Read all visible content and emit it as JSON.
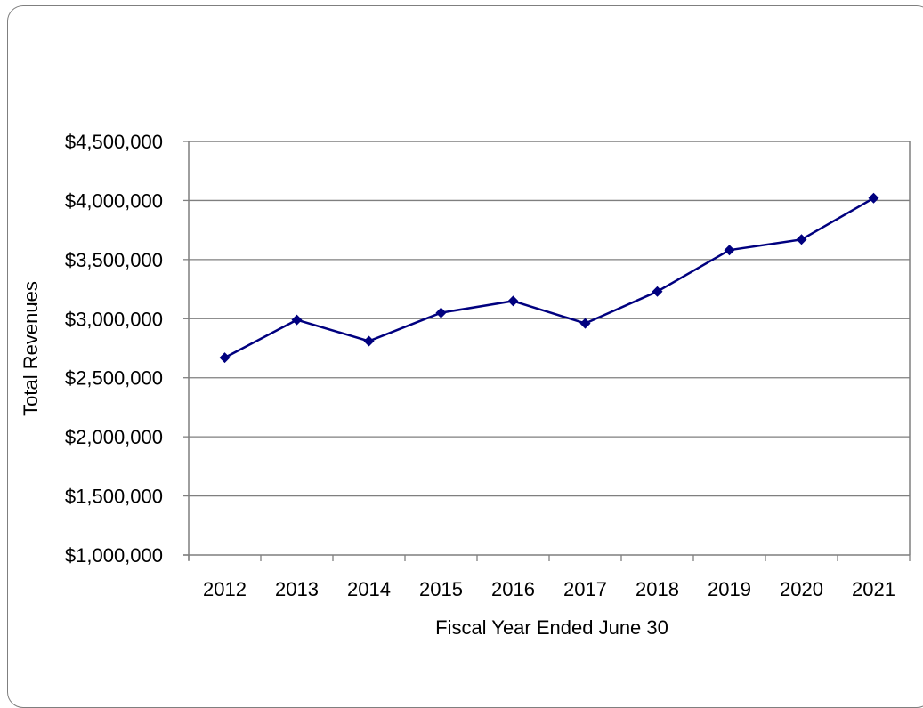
{
  "chart_data": {
    "type": "line",
    "title": "",
    "xlabel": "Fiscal Year Ended June 30",
    "ylabel": "Total Revenues",
    "categories": [
      "2012",
      "2013",
      "2014",
      "2015",
      "2016",
      "2017",
      "2018",
      "2019",
      "2020",
      "2021"
    ],
    "series": [
      {
        "values": [
          2670000,
          2990000,
          2810000,
          3050000,
          3150000,
          2960000,
          3230000,
          3580000,
          3670000,
          4020000
        ]
      }
    ],
    "ylim": [
      1000000,
      4500000
    ],
    "yticks": [
      1000000,
      1500000,
      2000000,
      2500000,
      3000000,
      3500000,
      4000000,
      4500000
    ],
    "ytick_labels": [
      "$1,000,000",
      "$1,500,000",
      "$2,000,000",
      "$2,500,000",
      "$3,000,000",
      "$3,500,000",
      "$4,000,000",
      "$4,500,000"
    ],
    "grid": true,
    "legend": "none",
    "colors": {
      "line": "#00007f",
      "marker": "#00007f",
      "grid": "#7f7f7f",
      "axis": "#7f7f7f"
    },
    "marker": "diamond"
  }
}
